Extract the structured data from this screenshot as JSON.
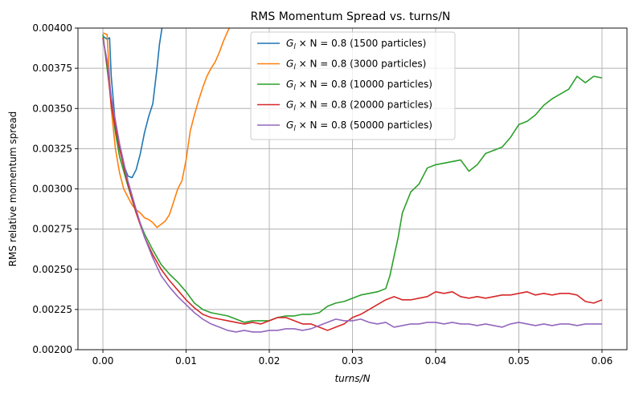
{
  "chart_data": {
    "type": "line",
    "title": "RMS Momentum Spread vs. turns/N",
    "xlabel": "turns/N",
    "ylabel": "RMS relative momentum spread",
    "xlim": [
      -0.003,
      0.063
    ],
    "ylim": [
      0.002,
      0.004
    ],
    "x_ticks": [
      "0.00",
      "0.01",
      "0.02",
      "0.03",
      "0.04",
      "0.05",
      "0.06"
    ],
    "y_ticks": [
      "0.00200",
      "0.00225",
      "0.00250",
      "0.00275",
      "0.00300",
      "0.00325",
      "0.00350",
      "0.00375",
      "0.00400"
    ],
    "grid": true,
    "legend_position": "upper-center",
    "series": [
      {
        "name": "G_l × N = 0.8 (1500 particles)",
        "name_parts": [
          "G",
          "l",
          " × N = 0.8 (1500 particles)"
        ],
        "color": "#1f77b4",
        "points": [
          [
            0.0,
            0.00395
          ],
          [
            0.0005,
            0.00393
          ],
          [
            0.0008,
            0.00394
          ],
          [
            0.001,
            0.0037
          ],
          [
            0.0015,
            0.0034
          ],
          [
            0.002,
            0.00325
          ],
          [
            0.0025,
            0.00315
          ],
          [
            0.003,
            0.00308
          ],
          [
            0.0035,
            0.00307
          ],
          [
            0.004,
            0.00312
          ],
          [
            0.0045,
            0.00322
          ],
          [
            0.005,
            0.00335
          ],
          [
            0.0055,
            0.00345
          ],
          [
            0.006,
            0.00353
          ],
          [
            0.0065,
            0.00375
          ],
          [
            0.0068,
            0.0039
          ],
          [
            0.0071,
            0.004
          ]
        ]
      },
      {
        "name": "G_l × N = 0.8 (3000 particles)",
        "name_parts": [
          "G",
          "l",
          " × N = 0.8 (3000 particles)"
        ],
        "color": "#ff7f0e",
        "points": [
          [
            0.0,
            0.00397
          ],
          [
            0.0005,
            0.00396
          ],
          [
            0.001,
            0.0035
          ],
          [
            0.0015,
            0.00325
          ],
          [
            0.002,
            0.0031
          ],
          [
            0.0025,
            0.003
          ],
          [
            0.003,
            0.00295
          ],
          [
            0.0035,
            0.0029
          ],
          [
            0.004,
            0.00287
          ],
          [
            0.0045,
            0.00285
          ],
          [
            0.005,
            0.00282
          ],
          [
            0.0055,
            0.00281
          ],
          [
            0.006,
            0.00279
          ],
          [
            0.0065,
            0.00276
          ],
          [
            0.007,
            0.00278
          ],
          [
            0.0075,
            0.0028
          ],
          [
            0.008,
            0.00284
          ],
          [
            0.0085,
            0.00292
          ],
          [
            0.009,
            0.003
          ],
          [
            0.0095,
            0.00305
          ],
          [
            0.01,
            0.00318
          ],
          [
            0.0105,
            0.00336
          ],
          [
            0.011,
            0.00346
          ],
          [
            0.0115,
            0.00355
          ],
          [
            0.012,
            0.00363
          ],
          [
            0.0125,
            0.0037
          ],
          [
            0.013,
            0.00375
          ],
          [
            0.0135,
            0.00379
          ],
          [
            0.014,
            0.00385
          ],
          [
            0.0145,
            0.00392
          ],
          [
            0.015,
            0.00398
          ],
          [
            0.0152,
            0.004
          ]
        ]
      },
      {
        "name": "G_l × N = 0.8 (10000 particles)",
        "name_parts": [
          "G",
          "l",
          " × N = 0.8 (10000 particles)"
        ],
        "color": "#2ca02c",
        "points": [
          [
            0.0,
            0.00396
          ],
          [
            0.0005,
            0.00375
          ],
          [
            0.001,
            0.00355
          ],
          [
            0.0015,
            0.00335
          ],
          [
            0.002,
            0.0032
          ],
          [
            0.003,
            0.00302
          ],
          [
            0.004,
            0.00285
          ],
          [
            0.005,
            0.00272
          ],
          [
            0.006,
            0.00262
          ],
          [
            0.007,
            0.00253
          ],
          [
            0.008,
            0.00247
          ],
          [
            0.009,
            0.00242
          ],
          [
            0.01,
            0.00236
          ],
          [
            0.011,
            0.00229
          ],
          [
            0.012,
            0.00225
          ],
          [
            0.013,
            0.00223
          ],
          [
            0.014,
            0.00222
          ],
          [
            0.015,
            0.00221
          ],
          [
            0.016,
            0.00219
          ],
          [
            0.017,
            0.00217
          ],
          [
            0.018,
            0.00218
          ],
          [
            0.019,
            0.00218
          ],
          [
            0.02,
            0.00218
          ],
          [
            0.021,
            0.0022
          ],
          [
            0.022,
            0.00221
          ],
          [
            0.023,
            0.00221
          ],
          [
            0.024,
            0.00222
          ],
          [
            0.025,
            0.00222
          ],
          [
            0.026,
            0.00223
          ],
          [
            0.027,
            0.00227
          ],
          [
            0.028,
            0.00229
          ],
          [
            0.029,
            0.0023
          ],
          [
            0.03,
            0.00232
          ],
          [
            0.031,
            0.00234
          ],
          [
            0.032,
            0.00235
          ],
          [
            0.033,
            0.00236
          ],
          [
            0.034,
            0.00238
          ],
          [
            0.0345,
            0.00246
          ],
          [
            0.035,
            0.00258
          ],
          [
            0.0355,
            0.0027
          ],
          [
            0.036,
            0.00285
          ],
          [
            0.037,
            0.00298
          ],
          [
            0.038,
            0.00303
          ],
          [
            0.039,
            0.00313
          ],
          [
            0.04,
            0.00315
          ],
          [
            0.041,
            0.00316
          ],
          [
            0.042,
            0.00317
          ],
          [
            0.043,
            0.00318
          ],
          [
            0.044,
            0.00311
          ],
          [
            0.045,
            0.00315
          ],
          [
            0.046,
            0.00322
          ],
          [
            0.047,
            0.00324
          ],
          [
            0.048,
            0.00326
          ],
          [
            0.049,
            0.00332
          ],
          [
            0.05,
            0.0034
          ],
          [
            0.051,
            0.00342
          ],
          [
            0.052,
            0.00346
          ],
          [
            0.053,
            0.00352
          ],
          [
            0.054,
            0.00356
          ],
          [
            0.055,
            0.00359
          ],
          [
            0.056,
            0.00362
          ],
          [
            0.057,
            0.0037
          ],
          [
            0.058,
            0.00366
          ],
          [
            0.059,
            0.0037
          ],
          [
            0.06,
            0.00369
          ]
        ]
      },
      {
        "name": "G_l × N = 0.8 (20000 particles)",
        "name_parts": [
          "G",
          "l",
          " × N = 0.8 (20000 particles)"
        ],
        "color": "#d62728",
        "points": [
          [
            0.0,
            0.00394
          ],
          [
            0.0005,
            0.00378
          ],
          [
            0.001,
            0.00352
          ],
          [
            0.002,
            0.00325
          ],
          [
            0.003,
            0.00303
          ],
          [
            0.004,
            0.00285
          ],
          [
            0.005,
            0.0027
          ],
          [
            0.006,
            0.00259
          ],
          [
            0.007,
            0.0025
          ],
          [
            0.008,
            0.00243
          ],
          [
            0.009,
            0.00237
          ],
          [
            0.01,
            0.00231
          ],
          [
            0.011,
            0.00226
          ],
          [
            0.012,
            0.00222
          ],
          [
            0.013,
            0.0022
          ],
          [
            0.014,
            0.00219
          ],
          [
            0.015,
            0.00218
          ],
          [
            0.016,
            0.00217
          ],
          [
            0.017,
            0.00216
          ],
          [
            0.018,
            0.00217
          ],
          [
            0.019,
            0.00216
          ],
          [
            0.02,
            0.00218
          ],
          [
            0.021,
            0.0022
          ],
          [
            0.022,
            0.0022
          ],
          [
            0.023,
            0.00218
          ],
          [
            0.024,
            0.00216
          ],
          [
            0.025,
            0.00216
          ],
          [
            0.026,
            0.00214
          ],
          [
            0.027,
            0.00212
          ],
          [
            0.028,
            0.00214
          ],
          [
            0.029,
            0.00216
          ],
          [
            0.03,
            0.0022
          ],
          [
            0.031,
            0.00222
          ],
          [
            0.032,
            0.00225
          ],
          [
            0.033,
            0.00228
          ],
          [
            0.034,
            0.00231
          ],
          [
            0.035,
            0.00233
          ],
          [
            0.036,
            0.00231
          ],
          [
            0.037,
            0.00231
          ],
          [
            0.038,
            0.00232
          ],
          [
            0.039,
            0.00233
          ],
          [
            0.04,
            0.00236
          ],
          [
            0.041,
            0.00235
          ],
          [
            0.042,
            0.00236
          ],
          [
            0.043,
            0.00233
          ],
          [
            0.044,
            0.00232
          ],
          [
            0.045,
            0.00233
          ],
          [
            0.046,
            0.00232
          ],
          [
            0.047,
            0.00233
          ],
          [
            0.048,
            0.00234
          ],
          [
            0.049,
            0.00234
          ],
          [
            0.05,
            0.00235
          ],
          [
            0.051,
            0.00236
          ],
          [
            0.052,
            0.00234
          ],
          [
            0.053,
            0.00235
          ],
          [
            0.054,
            0.00234
          ],
          [
            0.055,
            0.00235
          ],
          [
            0.056,
            0.00235
          ],
          [
            0.057,
            0.00234
          ],
          [
            0.058,
            0.0023
          ],
          [
            0.059,
            0.00229
          ],
          [
            0.06,
            0.00231
          ]
        ]
      },
      {
        "name": "G_l × N = 0.8 (50000 particles)",
        "name_parts": [
          "G",
          "l",
          " × N = 0.8 (50000 particles)"
        ],
        "color": "#9467bd",
        "points": [
          [
            0.0,
            0.00393
          ],
          [
            0.0005,
            0.0038
          ],
          [
            0.001,
            0.00357
          ],
          [
            0.002,
            0.00328
          ],
          [
            0.003,
            0.00305
          ],
          [
            0.004,
            0.00287
          ],
          [
            0.005,
            0.0027
          ],
          [
            0.006,
            0.00257
          ],
          [
            0.007,
            0.00246
          ],
          [
            0.008,
            0.00239
          ],
          [
            0.009,
            0.00233
          ],
          [
            0.01,
            0.00228
          ],
          [
            0.011,
            0.00223
          ],
          [
            0.012,
            0.00219
          ],
          [
            0.013,
            0.00216
          ],
          [
            0.014,
            0.00214
          ],
          [
            0.015,
            0.00212
          ],
          [
            0.016,
            0.00211
          ],
          [
            0.017,
            0.00212
          ],
          [
            0.018,
            0.00211
          ],
          [
            0.019,
            0.00211
          ],
          [
            0.02,
            0.00212
          ],
          [
            0.021,
            0.00212
          ],
          [
            0.022,
            0.00213
          ],
          [
            0.023,
            0.00213
          ],
          [
            0.024,
            0.00212
          ],
          [
            0.025,
            0.00213
          ],
          [
            0.026,
            0.00215
          ],
          [
            0.027,
            0.00217
          ],
          [
            0.028,
            0.00219
          ],
          [
            0.029,
            0.00218
          ],
          [
            0.03,
            0.00218
          ],
          [
            0.031,
            0.00219
          ],
          [
            0.032,
            0.00217
          ],
          [
            0.033,
            0.00216
          ],
          [
            0.034,
            0.00217
          ],
          [
            0.035,
            0.00214
          ],
          [
            0.036,
            0.00215
          ],
          [
            0.037,
            0.00216
          ],
          [
            0.038,
            0.00216
          ],
          [
            0.039,
            0.00217
          ],
          [
            0.04,
            0.00217
          ],
          [
            0.041,
            0.00216
          ],
          [
            0.042,
            0.00217
          ],
          [
            0.043,
            0.00216
          ],
          [
            0.044,
            0.00216
          ],
          [
            0.045,
            0.00215
          ],
          [
            0.046,
            0.00216
          ],
          [
            0.047,
            0.00215
          ],
          [
            0.048,
            0.00214
          ],
          [
            0.049,
            0.00216
          ],
          [
            0.05,
            0.00217
          ],
          [
            0.051,
            0.00216
          ],
          [
            0.052,
            0.00215
          ],
          [
            0.053,
            0.00216
          ],
          [
            0.054,
            0.00215
          ],
          [
            0.055,
            0.00216
          ],
          [
            0.056,
            0.00216
          ],
          [
            0.057,
            0.00215
          ],
          [
            0.058,
            0.00216
          ],
          [
            0.059,
            0.00216
          ],
          [
            0.06,
            0.00216
          ]
        ]
      }
    ]
  }
}
